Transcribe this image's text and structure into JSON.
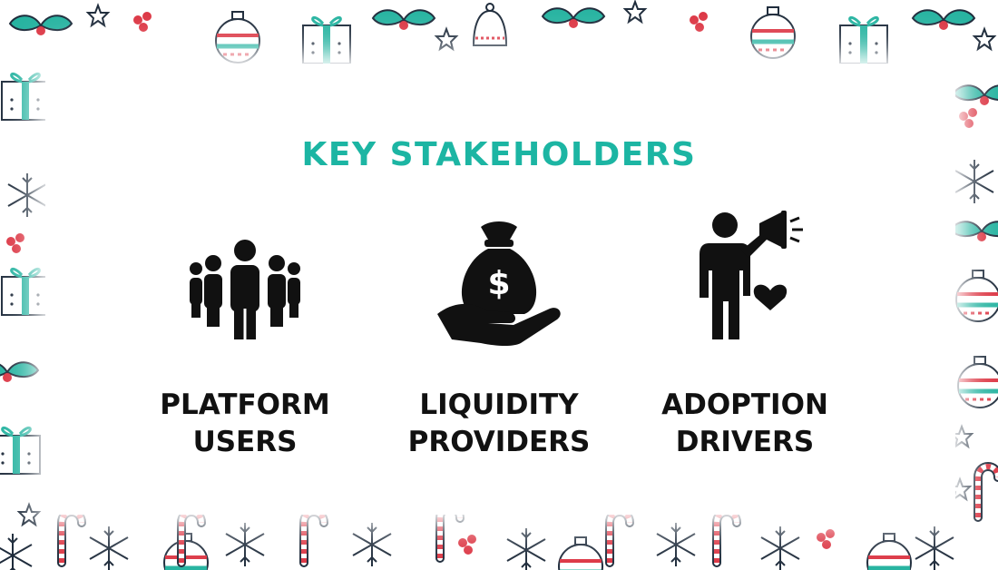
{
  "slide": {
    "title": "KEY STAKEHOLDERS",
    "title_color": "#1cb5a3",
    "items": [
      {
        "icon": "group-of-people-icon",
        "line1": "PLATFORM",
        "line2": "USERS"
      },
      {
        "icon": "money-bag-hand-icon",
        "line1": "LIQUIDITY",
        "line2": "PROVIDERS"
      },
      {
        "icon": "person-megaphone-heart-icon",
        "line1": "ADOPTION",
        "line2": "DRIVERS"
      }
    ]
  },
  "background": {
    "pattern": "christmas",
    "colors": {
      "teal": "#25b3a0",
      "red": "#dc3442",
      "navy": "#1d2a3a"
    }
  }
}
